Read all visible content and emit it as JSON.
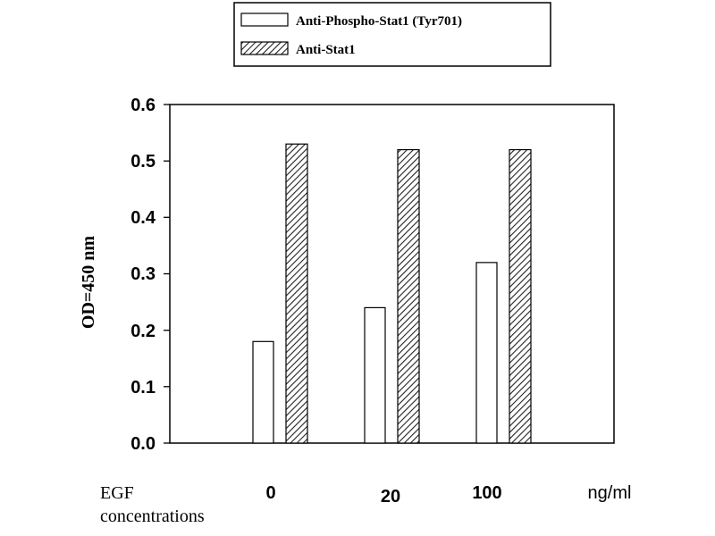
{
  "chart_data": {
    "type": "bar",
    "ylabel": "OD=450 nm",
    "ylim": [
      0,
      0.6
    ],
    "yticks": [
      "0.0",
      "0.1",
      "0.2",
      "0.3",
      "0.4",
      "0.5",
      "0.6"
    ],
    "categories": [
      "0",
      "20",
      "100"
    ],
    "series": [
      {
        "name": "Anti-Phospho-Stat1 (Tyr701)",
        "values": [
          0.18,
          0.24,
          0.32
        ],
        "pattern": "solid-white"
      },
      {
        "name": "Anti-Stat1",
        "values": [
          0.53,
          0.52,
          0.52
        ],
        "pattern": "diagonal-hatch"
      }
    ],
    "legend_placement": "top-center",
    "grid": false,
    "xaxis_caption_left": "EGF concentrations",
    "xaxis_unit": "ng/ml"
  }
}
